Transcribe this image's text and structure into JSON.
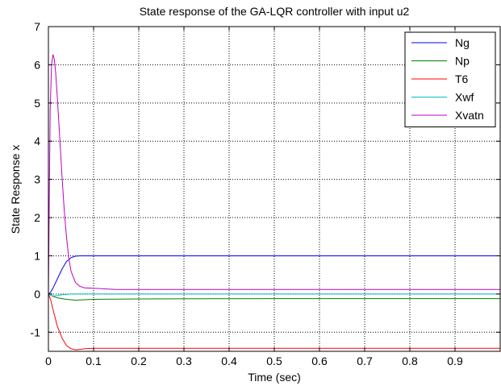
{
  "chart_data": {
    "type": "line",
    "title": "State response of the GA-LQR controller with input u2",
    "xlabel": "Time (sec)",
    "ylabel": "State Response x",
    "xlim": [
      0,
      1.0
    ],
    "ylim": [
      -1.5,
      7
    ],
    "xticks": [
      0,
      0.1,
      0.2,
      0.3,
      0.4,
      0.5,
      0.6,
      0.7,
      0.8,
      0.9
    ],
    "xtick_labels": [
      "0",
      "0.1",
      "0.2",
      "0.3",
      "0.4",
      "0.5",
      "0.6",
      "0.7",
      "0.8",
      "0.9"
    ],
    "yticks": [
      -1,
      0,
      1,
      2,
      3,
      4,
      5,
      6,
      7
    ],
    "ytick_labels": [
      "-1",
      "0",
      "1",
      "2",
      "3",
      "4",
      "5",
      "6",
      "7"
    ],
    "grid": true,
    "grid_style": "dotted",
    "legend_position": "top-right",
    "series": [
      {
        "name": "Ng",
        "color": "#0000ff",
        "x": [
          0,
          0.005,
          0.01,
          0.02,
          0.03,
          0.04,
          0.05,
          0.06,
          0.07,
          0.1,
          0.2,
          0.5,
          1.0
        ],
        "y": [
          0,
          0.05,
          0.15,
          0.4,
          0.65,
          0.85,
          0.95,
          0.99,
          1.0,
          1.0,
          1.0,
          1.0,
          1.0
        ]
      },
      {
        "name": "Np",
        "color": "#008000",
        "x": [
          0,
          0.005,
          0.01,
          0.02,
          0.04,
          0.06,
          0.08,
          0.1,
          0.2,
          0.5,
          1.0
        ],
        "y": [
          0,
          -0.03,
          -0.06,
          -0.1,
          -0.14,
          -0.16,
          -0.15,
          -0.14,
          -0.13,
          -0.12,
          -0.12
        ]
      },
      {
        "name": "T6",
        "color": "#ff0000",
        "x": [
          0,
          0.005,
          0.01,
          0.02,
          0.03,
          0.04,
          0.05,
          0.06,
          0.07,
          0.08,
          0.1,
          0.2,
          0.5,
          1.0
        ],
        "y": [
          0,
          -0.15,
          -0.4,
          -0.85,
          -1.15,
          -1.35,
          -1.43,
          -1.46,
          -1.45,
          -1.43,
          -1.42,
          -1.42,
          -1.42,
          -1.42
        ]
      },
      {
        "name": "Xwf",
        "color": "#00bfbf",
        "x": [
          0,
          0.005,
          0.01,
          0.02,
          0.03,
          0.05,
          0.08,
          0.1,
          0.5,
          1.0
        ],
        "y": [
          0,
          -0.03,
          -0.05,
          -0.04,
          -0.02,
          0.0,
          0.0,
          0.0,
          0.0,
          0.0
        ]
      },
      {
        "name": "Xvatn",
        "color": "#bf00bf",
        "x": [
          0,
          0.002,
          0.004,
          0.007,
          0.01,
          0.013,
          0.016,
          0.02,
          0.025,
          0.03,
          0.035,
          0.04,
          0.045,
          0.05,
          0.06,
          0.07,
          0.08,
          0.1,
          0.15,
          0.2,
          0.5,
          1.0
        ],
        "y": [
          0,
          2.5,
          4.8,
          6.0,
          6.27,
          6.15,
          5.8,
          5.1,
          4.1,
          3.1,
          2.2,
          1.5,
          0.95,
          0.6,
          0.3,
          0.2,
          0.16,
          0.15,
          0.12,
          0.12,
          0.12,
          0.12
        ]
      }
    ]
  }
}
